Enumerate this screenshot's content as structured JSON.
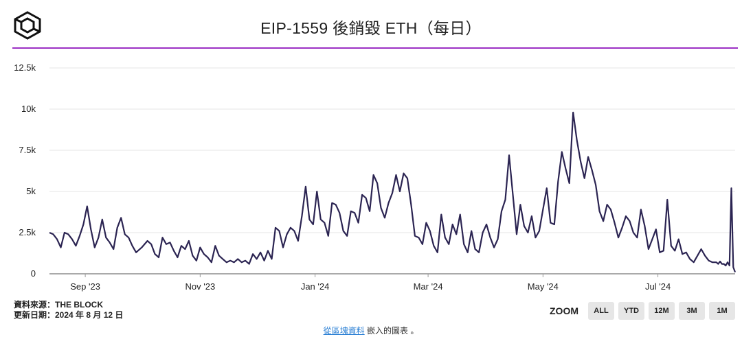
{
  "header": {
    "title": "EIP-1559 後銷毀 ETH（每日）",
    "logo_icon": "the-block-cube-icon"
  },
  "chart_data": {
    "type": "line",
    "title": "EIP-1559 後銷毀 ETH（每日）",
    "x_ticks": [
      "Sep '23",
      "Nov '23",
      "Jan '24",
      "Mar '24",
      "May '24",
      "Jul '24"
    ],
    "y_ticks": [
      "0",
      "2.5k",
      "5k",
      "7.5k",
      "10k",
      "12.5k"
    ],
    "ylim": [
      0,
      12500
    ],
    "xlim": [
      "2023-08-13",
      "2024-08-11"
    ],
    "grid": true,
    "line_color": "#2b2452",
    "series": [
      {
        "values": [
          [
            "2023-08-13",
            2500
          ],
          [
            "2023-08-15",
            2400
          ],
          [
            "2023-08-17",
            2100
          ],
          [
            "2023-08-19",
            1600
          ],
          [
            "2023-08-21",
            2500
          ],
          [
            "2023-08-23",
            2400
          ],
          [
            "2023-08-25",
            2100
          ],
          [
            "2023-08-27",
            1700
          ],
          [
            "2023-08-29",
            2300
          ],
          [
            "2023-08-31",
            3000
          ],
          [
            "2023-09-02",
            4100
          ],
          [
            "2023-09-04",
            2700
          ],
          [
            "2023-09-06",
            1600
          ],
          [
            "2023-09-08",
            2200
          ],
          [
            "2023-09-10",
            3300
          ],
          [
            "2023-09-12",
            2200
          ],
          [
            "2023-09-14",
            1900
          ],
          [
            "2023-09-16",
            1500
          ],
          [
            "2023-09-18",
            2800
          ],
          [
            "2023-09-20",
            3400
          ],
          [
            "2023-09-22",
            2400
          ],
          [
            "2023-09-24",
            2200
          ],
          [
            "2023-09-26",
            1700
          ],
          [
            "2023-09-28",
            1300
          ],
          [
            "2023-10-01",
            1600
          ],
          [
            "2023-10-04",
            2000
          ],
          [
            "2023-10-06",
            1800
          ],
          [
            "2023-10-08",
            1200
          ],
          [
            "2023-10-10",
            1000
          ],
          [
            "2023-10-12",
            2200
          ],
          [
            "2023-10-14",
            1800
          ],
          [
            "2023-10-16",
            1900
          ],
          [
            "2023-10-18",
            1400
          ],
          [
            "2023-10-20",
            1000
          ],
          [
            "2023-10-22",
            1700
          ],
          [
            "2023-10-24",
            1500
          ],
          [
            "2023-10-26",
            2000
          ],
          [
            "2023-10-28",
            1100
          ],
          [
            "2023-10-30",
            800
          ],
          [
            "2023-11-01",
            1600
          ],
          [
            "2023-11-03",
            1200
          ],
          [
            "2023-11-05",
            1000
          ],
          [
            "2023-11-07",
            700
          ],
          [
            "2023-11-09",
            1700
          ],
          [
            "2023-11-11",
            1100
          ],
          [
            "2023-11-13",
            900
          ],
          [
            "2023-11-15",
            700
          ],
          [
            "2023-11-17",
            800
          ],
          [
            "2023-11-19",
            700
          ],
          [
            "2023-11-21",
            900
          ],
          [
            "2023-11-23",
            700
          ],
          [
            "2023-11-25",
            800
          ],
          [
            "2023-11-27",
            600
          ],
          [
            "2023-11-29",
            1200
          ],
          [
            "2023-12-01",
            900
          ],
          [
            "2023-12-03",
            1300
          ],
          [
            "2023-12-05",
            800
          ],
          [
            "2023-12-07",
            1400
          ],
          [
            "2023-12-09",
            900
          ],
          [
            "2023-12-11",
            2800
          ],
          [
            "2023-12-13",
            2600
          ],
          [
            "2023-12-15",
            1600
          ],
          [
            "2023-12-17",
            2400
          ],
          [
            "2023-12-19",
            2800
          ],
          [
            "2023-12-21",
            2600
          ],
          [
            "2023-12-23",
            2000
          ],
          [
            "2023-12-25",
            3500
          ],
          [
            "2023-12-27",
            5300
          ],
          [
            "2023-12-29",
            3300
          ],
          [
            "2023-12-31",
            3000
          ],
          [
            "2024-01-02",
            5000
          ],
          [
            "2024-01-04",
            3300
          ],
          [
            "2024-01-06",
            3100
          ],
          [
            "2024-01-08",
            2300
          ],
          [
            "2024-01-10",
            4300
          ],
          [
            "2024-01-12",
            4200
          ],
          [
            "2024-01-14",
            3700
          ],
          [
            "2024-01-16",
            2600
          ],
          [
            "2024-01-18",
            2300
          ],
          [
            "2024-01-20",
            3800
          ],
          [
            "2024-01-22",
            3700
          ],
          [
            "2024-01-24",
            3100
          ],
          [
            "2024-01-26",
            4800
          ],
          [
            "2024-01-28",
            4600
          ],
          [
            "2024-01-30",
            3800
          ],
          [
            "2024-02-01",
            6000
          ],
          [
            "2024-02-03",
            5500
          ],
          [
            "2024-02-05",
            4000
          ],
          [
            "2024-02-07",
            3400
          ],
          [
            "2024-02-09",
            4300
          ],
          [
            "2024-02-11",
            4900
          ],
          [
            "2024-02-13",
            6000
          ],
          [
            "2024-02-15",
            5000
          ],
          [
            "2024-02-17",
            6100
          ],
          [
            "2024-02-19",
            5800
          ],
          [
            "2024-02-21",
            4200
          ],
          [
            "2024-02-23",
            2300
          ],
          [
            "2024-02-25",
            2200
          ],
          [
            "2024-02-27",
            1800
          ],
          [
            "2024-02-29",
            3100
          ],
          [
            "2024-03-02",
            2600
          ],
          [
            "2024-03-04",
            1700
          ],
          [
            "2024-03-06",
            1300
          ],
          [
            "2024-03-08",
            3600
          ],
          [
            "2024-03-10",
            2200
          ],
          [
            "2024-03-12",
            1800
          ],
          [
            "2024-03-14",
            3000
          ],
          [
            "2024-03-16",
            2400
          ],
          [
            "2024-03-18",
            3600
          ],
          [
            "2024-03-20",
            1800
          ],
          [
            "2024-03-22",
            1300
          ],
          [
            "2024-03-24",
            2600
          ],
          [
            "2024-03-26",
            1500
          ],
          [
            "2024-03-28",
            1300
          ],
          [
            "2024-03-30",
            2500
          ],
          [
            "2024-04-01",
            3000
          ],
          [
            "2024-04-03",
            2200
          ],
          [
            "2024-04-05",
            1600
          ],
          [
            "2024-04-07",
            2100
          ],
          [
            "2024-04-09",
            3800
          ],
          [
            "2024-04-11",
            4500
          ],
          [
            "2024-04-13",
            7200
          ],
          [
            "2024-04-15",
            4800
          ],
          [
            "2024-04-17",
            2400
          ],
          [
            "2024-04-19",
            4200
          ],
          [
            "2024-04-21",
            2900
          ],
          [
            "2024-04-23",
            2500
          ],
          [
            "2024-04-25",
            3500
          ],
          [
            "2024-04-27",
            2200
          ],
          [
            "2024-04-29",
            2600
          ],
          [
            "2024-05-01",
            3900
          ],
          [
            "2024-05-03",
            5200
          ],
          [
            "2024-05-05",
            3100
          ],
          [
            "2024-05-07",
            3000
          ],
          [
            "2024-05-09",
            5600
          ],
          [
            "2024-05-11",
            7400
          ],
          [
            "2024-05-13",
            6400
          ],
          [
            "2024-05-15",
            5500
          ],
          [
            "2024-05-17",
            9800
          ],
          [
            "2024-05-19",
            8100
          ],
          [
            "2024-05-21",
            6800
          ],
          [
            "2024-05-23",
            5800
          ],
          [
            "2024-05-25",
            7100
          ],
          [
            "2024-05-27",
            6300
          ],
          [
            "2024-05-29",
            5400
          ],
          [
            "2024-05-31",
            3800
          ],
          [
            "2024-06-02",
            3200
          ],
          [
            "2024-06-04",
            4200
          ],
          [
            "2024-06-06",
            3900
          ],
          [
            "2024-06-08",
            3100
          ],
          [
            "2024-06-10",
            2200
          ],
          [
            "2024-06-12",
            2800
          ],
          [
            "2024-06-14",
            3500
          ],
          [
            "2024-06-16",
            3200
          ],
          [
            "2024-06-18",
            2500
          ],
          [
            "2024-06-20",
            2200
          ],
          [
            "2024-06-22",
            3900
          ],
          [
            "2024-06-24",
            2900
          ],
          [
            "2024-06-26",
            1500
          ],
          [
            "2024-06-28",
            2100
          ],
          [
            "2024-06-30",
            2700
          ],
          [
            "2024-07-02",
            1300
          ],
          [
            "2024-07-04",
            1400
          ],
          [
            "2024-07-06",
            4500
          ],
          [
            "2024-07-08",
            1700
          ],
          [
            "2024-07-10",
            1400
          ],
          [
            "2024-07-12",
            2100
          ],
          [
            "2024-07-14",
            1200
          ],
          [
            "2024-07-16",
            1300
          ],
          [
            "2024-07-18",
            900
          ],
          [
            "2024-07-20",
            700
          ],
          [
            "2024-07-22",
            1100
          ],
          [
            "2024-07-24",
            1500
          ],
          [
            "2024-07-26",
            1100
          ],
          [
            "2024-07-28",
            800
          ],
          [
            "2024-07-30",
            700
          ],
          [
            "2024-08-01",
            700
          ],
          [
            "2024-08-02",
            600
          ],
          [
            "2024-08-03",
            750
          ],
          [
            "2024-08-04",
            600
          ],
          [
            "2024-08-05",
            600
          ],
          [
            "2024-08-06",
            500
          ],
          [
            "2024-08-07",
            700
          ],
          [
            "2024-08-08",
            500
          ],
          [
            "2024-08-09",
            5200
          ],
          [
            "2024-08-10",
            400
          ],
          [
            "2024-08-11",
            100
          ]
        ]
      }
    ]
  },
  "footer": {
    "source_line": "資料來源：THE BLOCK",
    "updated_line": "更新日期：2024 年 8 月 12 日"
  },
  "zoom": {
    "label": "ZOOM",
    "buttons": [
      "ALL",
      "YTD",
      "12M",
      "3M",
      "1M"
    ]
  },
  "credit": {
    "link_text": "從區塊資料",
    "suffix": " 嵌入的圖表 。"
  }
}
